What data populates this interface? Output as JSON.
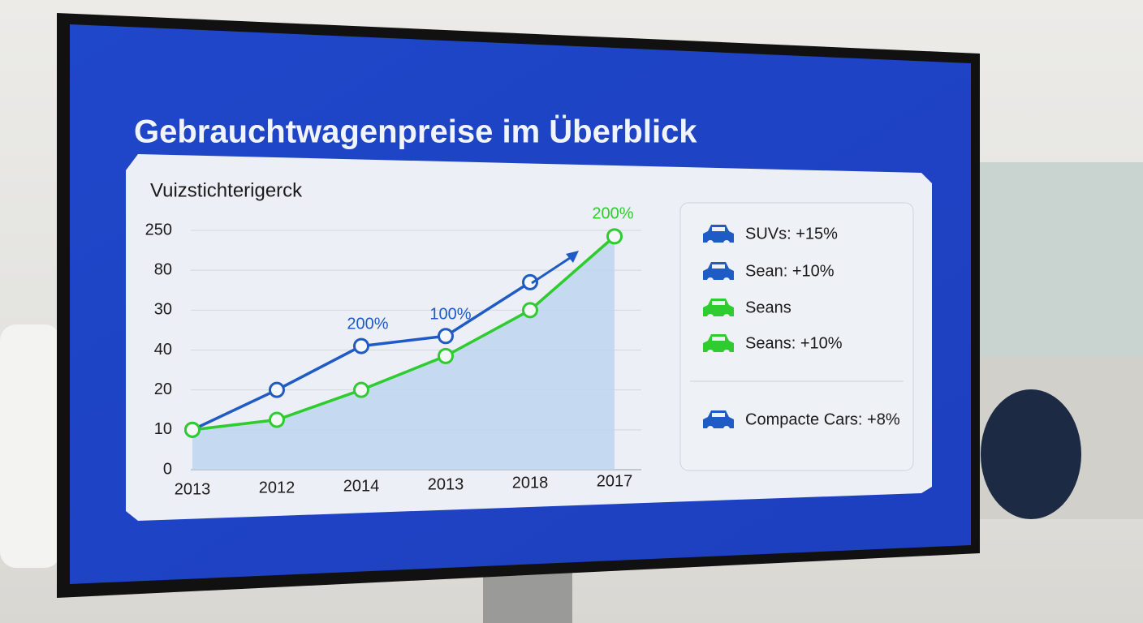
{
  "chart_data": {
    "type": "line",
    "title": "Gebrauchtwagenpreise im Überblick",
    "subtitle": "Vuizstichterigerck",
    "categories": [
      "2013",
      "2012",
      "2014",
      "2013",
      "2018",
      "2017"
    ],
    "series": [
      {
        "color": "#1f5bc4",
        "values": [
          1.0,
          2.0,
          3.1,
          3.35,
          4.7,
          null
        ]
      },
      {
        "color": "#2ecc2e",
        "values": [
          1.0,
          1.25,
          2.0,
          2.85,
          4.0,
          5.85
        ],
        "area_color": "#bcd4f0"
      }
    ],
    "ylim": [
      0,
      6
    ],
    "yticks": [
      {
        "value": 0,
        "label": "0"
      },
      {
        "value": 1,
        "label": "10"
      },
      {
        "value": 2,
        "label": "20"
      },
      {
        "value": 3,
        "label": "40"
      },
      {
        "value": 4,
        "label": "30"
      },
      {
        "value": 5,
        "label": "80"
      },
      {
        "value": 6,
        "label": "250"
      }
    ],
    "grid": true,
    "annotations": [
      {
        "text": "200%",
        "color": "#1f5bc4"
      },
      {
        "text": "100%",
        "color": "#1f5bc4"
      },
      {
        "text": "200%",
        "color": "#2ecc2e"
      }
    ],
    "legend_items": [
      {
        "name": "SUVs: +15%",
        "color": "#1f5bc4"
      },
      {
        "name": "Sean: +10%",
        "color": "#1f5bc4"
      },
      {
        "name": "Seans",
        "color": "#2ecc2e"
      },
      {
        "name": "Seans: +10%",
        "color": "#2ecc2e"
      },
      {
        "name": "Compacte Cars: +8%",
        "color": "#1f5bc4"
      }
    ]
  }
}
